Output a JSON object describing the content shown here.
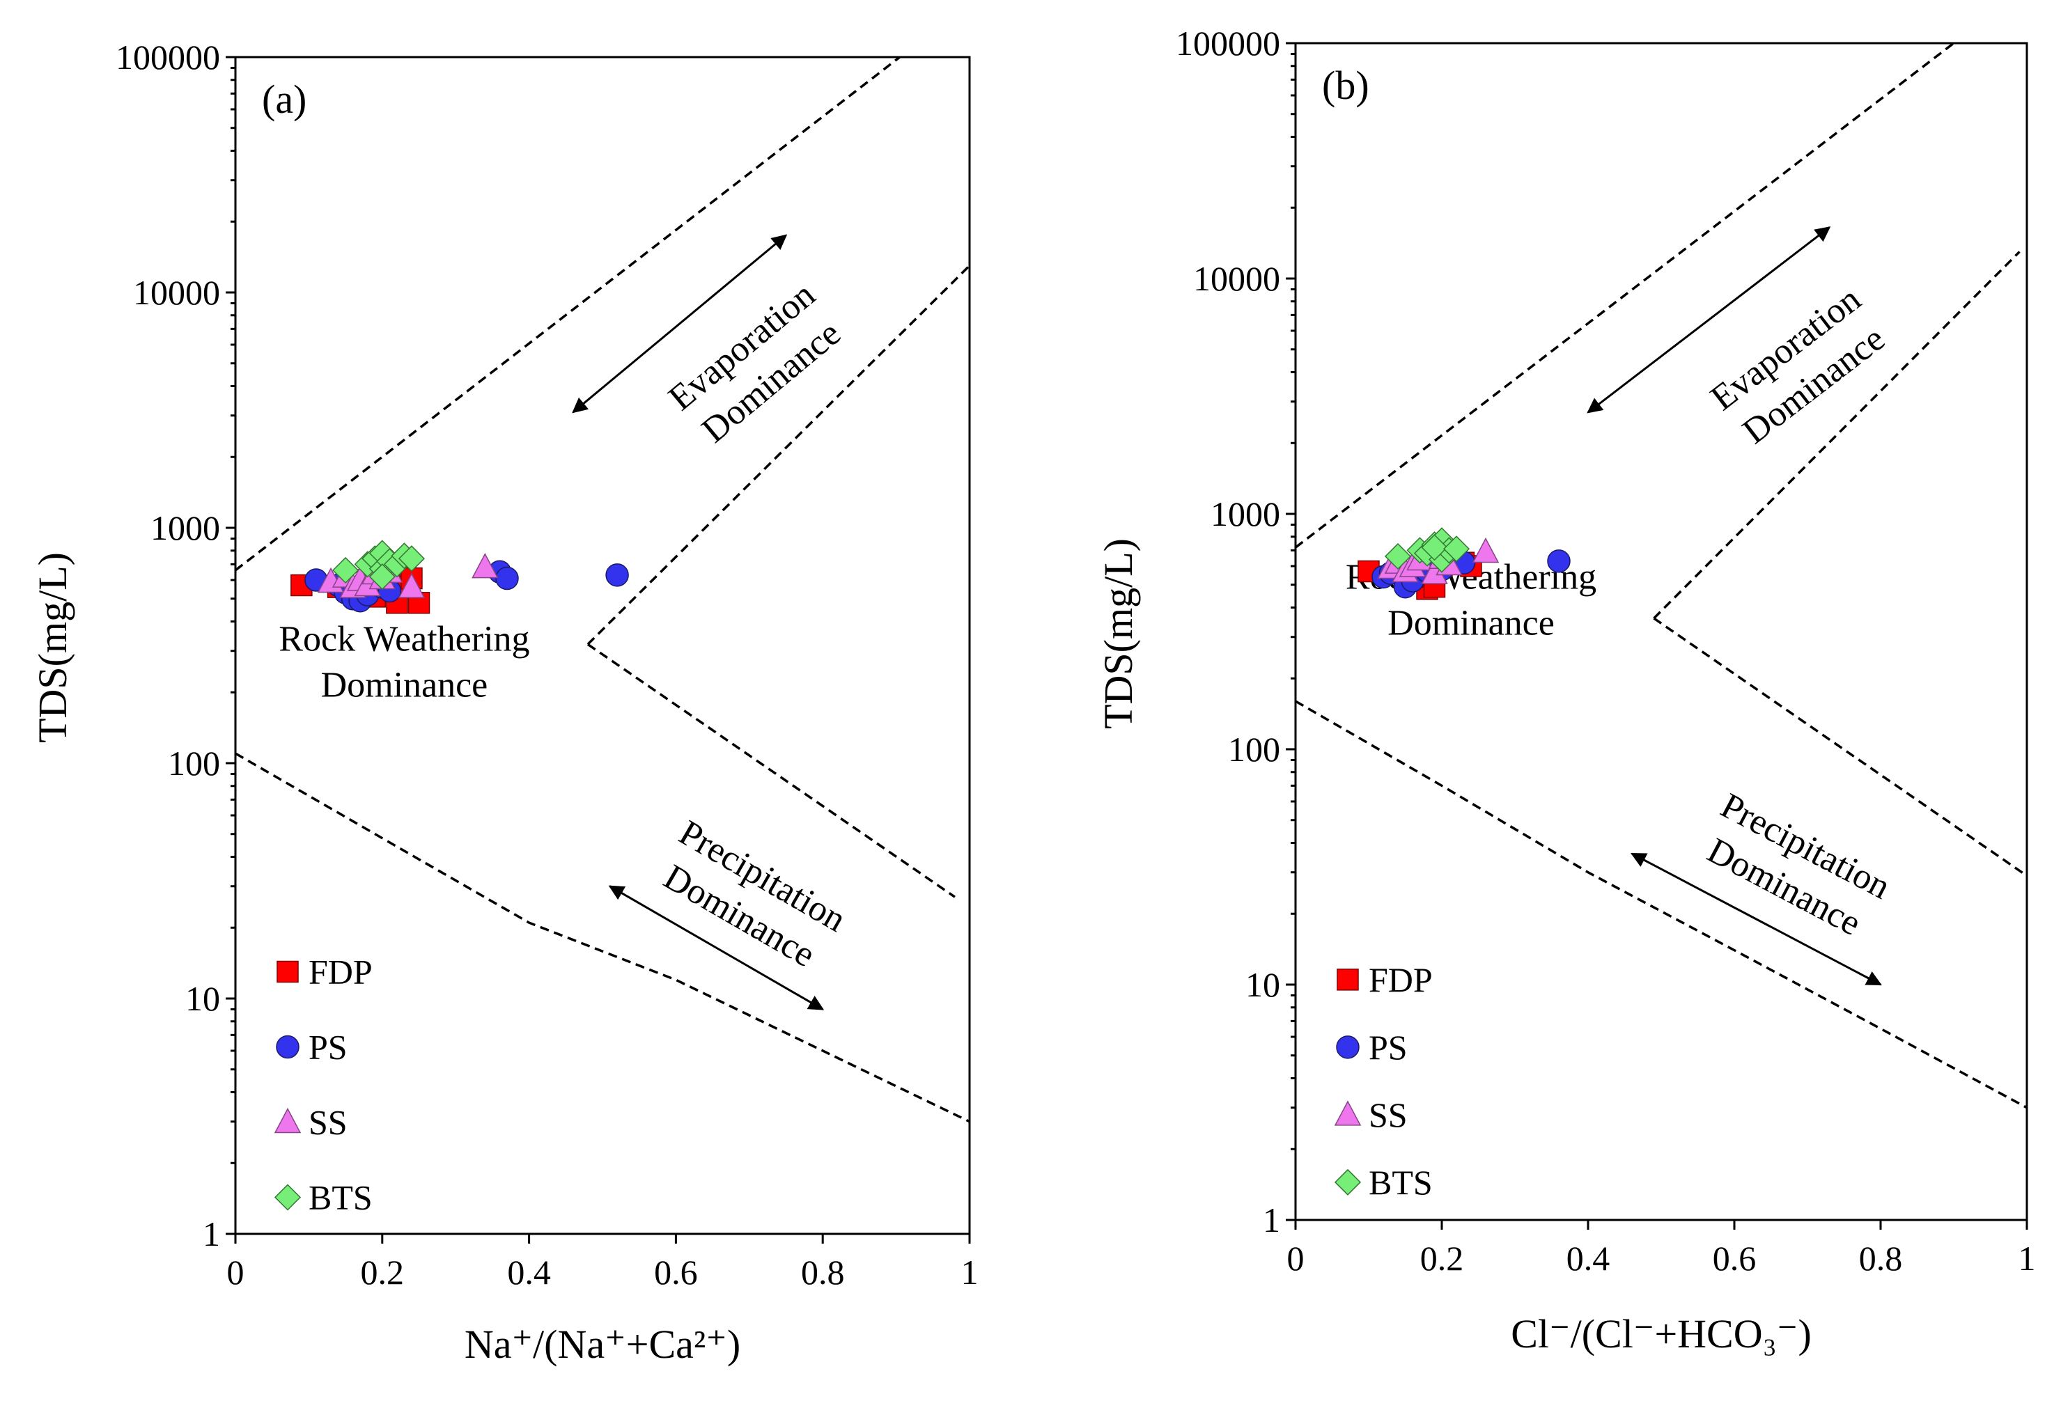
{
  "chart_data": [
    {
      "type": "scatter",
      "panel_label": "(a)",
      "title": "",
      "xlabel": "Na⁺/(Na⁺+Ca²⁺)",
      "ylabel": "TDS(mg/L)",
      "xlim": [
        0,
        1
      ],
      "ylim": [
        1,
        100000
      ],
      "y_scale": "log",
      "x_ticks": [
        "0",
        "0.2",
        "0.4",
        "0.6",
        "0.8",
        "1"
      ],
      "y_ticks": [
        "1",
        "10",
        "100",
        "1000",
        "10000",
        "100000"
      ],
      "legend_position": "bottom-left",
      "annotations": {
        "evaporation": [
          "Evaporation",
          "Dominance"
        ],
        "rock": [
          "Rock Weathering",
          "Dominance"
        ],
        "precipitation": [
          "Precipitation",
          "Dominance"
        ]
      },
      "boundaries": [
        {
          "name": "upper-boundary",
          "points": [
            [
              0,
              660
            ],
            [
              0.905,
              100000
            ]
          ]
        },
        {
          "name": "lower-boundary",
          "points": [
            [
              0,
              110
            ],
            [
              0.2,
              48
            ],
            [
              0.4,
              21
            ],
            [
              0.6,
              12
            ],
            [
              0.8,
              6
            ],
            [
              1,
              3
            ]
          ]
        },
        {
          "name": "right-upper-boundary",
          "points": [
            [
              0.48,
              320
            ],
            [
              1,
              13000
            ]
          ]
        },
        {
          "name": "right-lower-boundary",
          "points": [
            [
              0.48,
              320
            ],
            [
              0.98,
              27
            ]
          ]
        }
      ],
      "arrows": [
        {
          "name": "evaporation-arrow",
          "from": [
            0.46,
            3100
          ],
          "to": [
            0.75,
            17500
          ]
        },
        {
          "name": "precipitation-arrow",
          "from": [
            0.51,
            30
          ],
          "to": [
            0.8,
            9
          ]
        }
      ],
      "series": [
        {
          "name": "FDP",
          "marker": "square",
          "color": "#ff0000",
          "points": [
            [
              0.09,
              570
            ],
            [
              0.14,
              560
            ],
            [
              0.16,
              540
            ],
            [
              0.19,
              510
            ],
            [
              0.2,
              590
            ],
            [
              0.21,
              620
            ],
            [
              0.22,
              480
            ],
            [
              0.23,
              560
            ],
            [
              0.24,
              610
            ],
            [
              0.25,
              480
            ],
            [
              0.18,
              600
            ]
          ]
        },
        {
          "name": "PS",
          "marker": "circle",
          "color": "#3333ee",
          "points": [
            [
              0.11,
              600
            ],
            [
              0.14,
              570
            ],
            [
              0.15,
              530
            ],
            [
              0.16,
              500
            ],
            [
              0.17,
              490
            ],
            [
              0.18,
              520
            ],
            [
              0.2,
              560
            ],
            [
              0.21,
              540
            ],
            [
              0.36,
              650
            ],
            [
              0.37,
              610
            ],
            [
              0.52,
              630
            ]
          ]
        },
        {
          "name": "SS",
          "marker": "triangle",
          "color": "#ee77ee",
          "points": [
            [
              0.13,
              590
            ],
            [
              0.15,
              620
            ],
            [
              0.16,
              560
            ],
            [
              0.17,
              600
            ],
            [
              0.18,
              570
            ],
            [
              0.19,
              640
            ],
            [
              0.2,
              610
            ],
            [
              0.21,
              650
            ],
            [
              0.24,
              560
            ],
            [
              0.34,
              680
            ]
          ]
        },
        {
          "name": "BTS",
          "marker": "diamond",
          "color": "#77ee77",
          "points": [
            [
              0.15,
              660
            ],
            [
              0.18,
              700
            ],
            [
              0.19,
              740
            ],
            [
              0.2,
              780
            ],
            [
              0.2,
              670
            ],
            [
              0.21,
              720
            ],
            [
              0.22,
              700
            ],
            [
              0.23,
              760
            ],
            [
              0.2,
              620
            ],
            [
              0.24,
              740
            ]
          ]
        }
      ]
    },
    {
      "type": "scatter",
      "panel_label": "(b)",
      "title": "",
      "xlabel": "Cl⁻/(Cl⁻+HCO₃⁻)",
      "ylabel": "TDS(mg/L)",
      "xlim": [
        0,
        1
      ],
      "ylim": [
        1,
        100000
      ],
      "y_scale": "log",
      "x_ticks": [
        "0",
        "0.2",
        "0.4",
        "0.6",
        "0.8",
        "1"
      ],
      "y_ticks": [
        "1",
        "10",
        "100",
        "1000",
        "10000",
        "100000"
      ],
      "legend_position": "bottom-left",
      "annotations": {
        "evaporation": [
          "Evaporation",
          "Dominance"
        ],
        "rock": [
          "Rock Weathering",
          "Dominance"
        ],
        "precipitation": [
          "Precipitation",
          "Dominance"
        ]
      },
      "boundaries": [
        {
          "name": "upper-boundary",
          "points": [
            [
              0,
              720
            ],
            [
              0.9,
              100000
            ]
          ]
        },
        {
          "name": "lower-boundary",
          "points": [
            [
              0,
              160
            ],
            [
              0.2,
              70
            ],
            [
              0.4,
              30
            ],
            [
              0.6,
              14
            ],
            [
              0.8,
              6.5
            ],
            [
              1,
              3
            ]
          ]
        },
        {
          "name": "right-upper-boundary",
          "points": [
            [
              0.49,
              360
            ],
            [
              0.99,
              13000
            ]
          ]
        },
        {
          "name": "right-lower-boundary",
          "points": [
            [
              0.49,
              360
            ],
            [
              1,
              29
            ]
          ]
        }
      ],
      "arrows": [
        {
          "name": "evaporation-arrow",
          "from": [
            0.4,
            2700
          ],
          "to": [
            0.73,
            16500
          ]
        },
        {
          "name": "precipitation-arrow",
          "from": [
            0.46,
            36
          ],
          "to": [
            0.8,
            10
          ]
        }
      ],
      "series": [
        {
          "name": "FDP",
          "marker": "square",
          "color": "#ff0000",
          "points": [
            [
              0.1,
              570
            ],
            [
              0.14,
              560
            ],
            [
              0.17,
              530
            ],
            [
              0.18,
              480
            ],
            [
              0.19,
              490
            ],
            [
              0.2,
              600
            ],
            [
              0.23,
              620
            ],
            [
              0.24,
              600
            ],
            [
              0.16,
              540
            ]
          ]
        },
        {
          "name": "PS",
          "marker": "circle",
          "color": "#3333ee",
          "points": [
            [
              0.12,
              540
            ],
            [
              0.13,
              560
            ],
            [
              0.15,
              490
            ],
            [
              0.16,
              520
            ],
            [
              0.18,
              570
            ],
            [
              0.2,
              580
            ],
            [
              0.23,
              620
            ],
            [
              0.36,
              630
            ]
          ]
        },
        {
          "name": "SS",
          "marker": "triangle",
          "color": "#ee77ee",
          "points": [
            [
              0.13,
              590
            ],
            [
              0.14,
              620
            ],
            [
              0.15,
              570
            ],
            [
              0.16,
              600
            ],
            [
              0.17,
              640
            ],
            [
              0.19,
              560
            ],
            [
              0.2,
              650
            ],
            [
              0.21,
              610
            ],
            [
              0.26,
              690
            ]
          ]
        },
        {
          "name": "BTS",
          "marker": "diamond",
          "color": "#77ee77",
          "points": [
            [
              0.14,
              660
            ],
            [
              0.17,
              700
            ],
            [
              0.18,
              680
            ],
            [
              0.19,
              740
            ],
            [
              0.2,
              770
            ],
            [
              0.2,
              640
            ],
            [
              0.21,
              700
            ],
            [
              0.19,
              720
            ],
            [
              0.22,
              710
            ]
          ]
        }
      ]
    }
  ]
}
